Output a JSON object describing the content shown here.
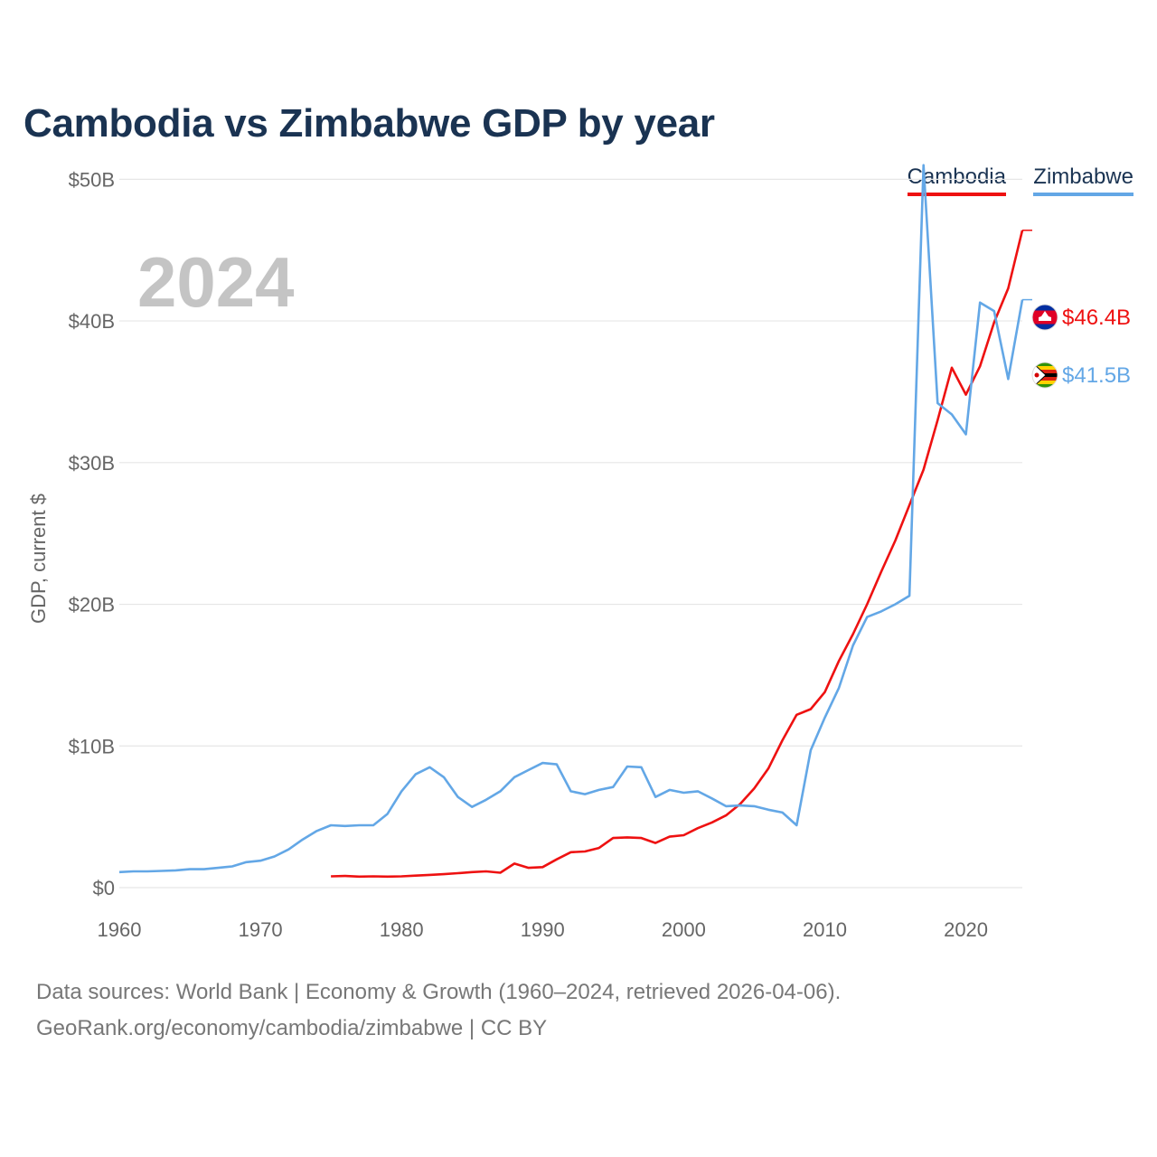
{
  "title": "Cambodia vs Zimbabwe GDP by year",
  "legend": [
    {
      "name": "Cambodia",
      "color": "#ee1111"
    },
    {
      "name": "Zimbabwe",
      "color": "#63a7e6"
    }
  ],
  "footer": {
    "line1": "Data sources: World Bank | Economy & Growth (1960–2024, retrieved 2026-04-06).",
    "line2": "GeoRank.org/economy/cambodia/zimbabwe | CC BY"
  },
  "chart_data": {
    "type": "line",
    "title": "Cambodia vs Zimbabwe GDP by year",
    "ylabel": "GDP, current $",
    "xlabel": "",
    "year_label": "2024",
    "xlim": [
      1960,
      2024
    ],
    "ylim": [
      0,
      52
    ],
    "y_unit": "billions of current US$",
    "x_ticks": [
      1960,
      1970,
      1980,
      1990,
      2000,
      2010,
      2020
    ],
    "x_tick_labels": [
      "1960",
      "1970",
      "1980",
      "1990",
      "2000",
      "2010",
      "2020"
    ],
    "y_ticks": [
      0,
      10,
      20,
      30,
      40,
      50
    ],
    "y_tick_labels": [
      "$0",
      "$10B",
      "$20B",
      "$30B",
      "$40B",
      "$50B"
    ],
    "grid": true,
    "legend_position": "top-right",
    "series": [
      {
        "name": "Cambodia",
        "color": "#ee1111",
        "flag": "cambodia-flag",
        "end_label": "$46.4B",
        "start_year": 1975,
        "values": [
          0.8,
          0.82,
          0.78,
          0.8,
          0.78,
          0.8,
          0.85,
          0.9,
          0.95,
          1.02,
          1.1,
          1.15,
          1.05,
          1.7,
          1.4,
          1.45,
          2.0,
          2.5,
          2.55,
          2.8,
          3.5,
          3.55,
          3.5,
          3.15,
          3.6,
          3.7,
          4.2,
          4.6,
          5.1,
          5.9,
          7.0,
          8.4,
          10.4,
          12.2,
          12.6,
          13.8,
          16.0,
          17.9,
          20.0,
          22.3,
          24.5,
          27.0,
          29.5,
          33.0,
          36.7,
          34.8,
          36.8,
          39.9,
          42.3,
          46.4
        ]
      },
      {
        "name": "Zimbabwe",
        "color": "#63a7e6",
        "flag": "zimbabwe-flag",
        "end_label": "$41.5B",
        "start_year": 1960,
        "values": [
          1.1,
          1.15,
          1.15,
          1.18,
          1.22,
          1.3,
          1.3,
          1.4,
          1.5,
          1.8,
          1.9,
          2.2,
          2.7,
          3.4,
          4.0,
          4.4,
          4.35,
          4.4,
          4.4,
          5.2,
          6.8,
          8.0,
          8.5,
          7.8,
          6.4,
          5.7,
          6.2,
          6.8,
          7.8,
          8.3,
          8.8,
          8.7,
          6.8,
          6.6,
          6.9,
          7.1,
          8.55,
          8.5,
          6.4,
          6.9,
          6.7,
          6.8,
          6.3,
          5.75,
          5.8,
          5.75,
          5.5,
          5.3,
          4.4,
          9.7,
          12.0,
          14.1,
          17.1,
          19.1,
          19.5,
          20.0,
          20.6,
          51.0,
          34.2,
          33.4,
          32.0,
          41.3,
          40.7,
          35.9,
          41.5
        ]
      }
    ]
  }
}
